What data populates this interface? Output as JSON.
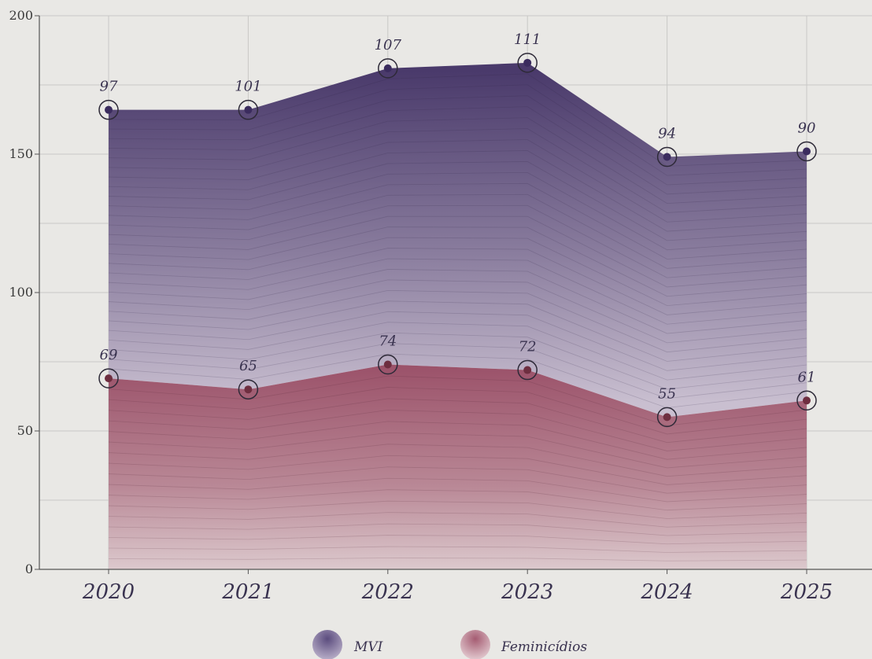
{
  "chart_data": {
    "type": "area",
    "stacked": true,
    "categories": [
      "2020",
      "2021",
      "2022",
      "2023",
      "2024",
      "2025"
    ],
    "series": [
      {
        "name": "MVI",
        "values": [
          97,
          101,
          107,
          111,
          94,
          90
        ],
        "color": "#4a3a6b"
      },
      {
        "name": "Feminicídios",
        "values": [
          69,
          65,
          74,
          72,
          55,
          61
        ],
        "color": "#9a5068"
      }
    ],
    "y_ticks": [
      "0",
      "50",
      "100",
      "150",
      "200"
    ],
    "ylim": [
      0,
      200
    ],
    "grid": true,
    "legend_position": "bottom-center",
    "title": "",
    "xlabel": "",
    "ylabel": ""
  },
  "colors": {
    "background": "#e9e8e5",
    "grid": "#c9c8c6",
    "axis": "#555555",
    "marker_mvi": "#3b2c5e",
    "marker_fem": "#6e2e40",
    "text": "#3a3350"
  }
}
